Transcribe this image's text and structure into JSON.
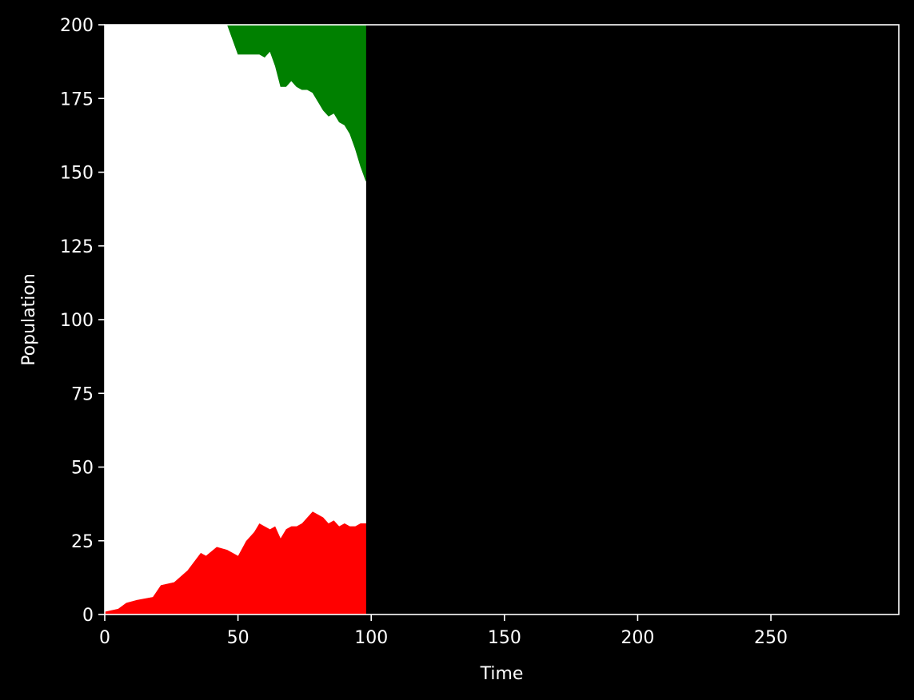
{
  "chart_data": {
    "type": "area",
    "title": "",
    "xlabel": "Time",
    "ylabel": "Population",
    "xlim": [
      0,
      298
    ],
    "ylim": [
      0,
      200
    ],
    "xticks": [
      0,
      50,
      100,
      150,
      200,
      250
    ],
    "yticks": [
      0,
      25,
      50,
      75,
      100,
      125,
      150,
      175,
      200
    ],
    "grid": false,
    "legend": "none",
    "background": "#000000",
    "axis_color": "#ffffff",
    "stacking": "stacked, bottom to top: red, white, green",
    "x": [
      0,
      5,
      8,
      12,
      18,
      21,
      26,
      31,
      36,
      38,
      42,
      46,
      50,
      53,
      56,
      58,
      60,
      62,
      64,
      66,
      68,
      70,
      72,
      74,
      76,
      78,
      80,
      82,
      84,
      86,
      88,
      90,
      92,
      94,
      96,
      98
    ],
    "series": [
      {
        "color": "#ff0000",
        "values": [
          1,
          2,
          4,
          5,
          6,
          10,
          11,
          15,
          21,
          20,
          23,
          22,
          20,
          25,
          28,
          31,
          30,
          29,
          30,
          26,
          29,
          30,
          30,
          31,
          33,
          35,
          34,
          33,
          31,
          32,
          30,
          31,
          30,
          30,
          31,
          31
        ]
      },
      {
        "color": "#ffffff",
        "values": [
          199,
          198,
          196,
          195,
          194,
          190,
          189,
          185,
          179,
          180,
          177,
          178,
          170,
          165,
          162,
          159,
          159,
          162,
          156,
          153,
          150,
          151,
          149,
          147,
          145,
          142,
          140,
          138,
          138,
          138,
          137,
          135,
          133,
          128,
          121,
          116
        ]
      },
      {
        "color": "#008000",
        "values": [
          0,
          0,
          0,
          0,
          0,
          0,
          0,
          0,
          0,
          0,
          0,
          0,
          10,
          10,
          10,
          10,
          11,
          9,
          14,
          21,
          21,
          19,
          21,
          22,
          22,
          23,
          26,
          29,
          31,
          30,
          33,
          34,
          37,
          42,
          48,
          53
        ]
      }
    ]
  }
}
